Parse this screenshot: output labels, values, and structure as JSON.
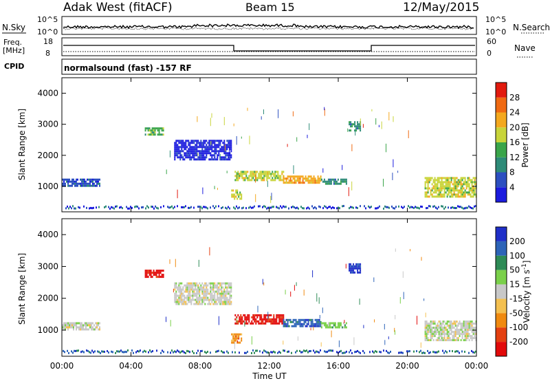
{
  "header": {
    "station": "Adak West (fitACF)",
    "beam": "Beam 15",
    "date": "12/May/2015"
  },
  "top_panels": {
    "nsky_label": "N.Sky",
    "nsearch_label": "N.Search",
    "nsky_ticks": [
      "10^5",
      "10^0"
    ],
    "nsearch_ticks": [
      "10^5",
      "10^0"
    ],
    "freq_label_1": "Freq.",
    "freq_label_2": "[MHz]",
    "freq_ticks": [
      "18",
      "8"
    ],
    "nave_label": "Nave",
    "nave_ticks": [
      "60",
      "0"
    ],
    "cpid_label": "CPID",
    "cpid_text": "normalsound (fast) -157 RF"
  },
  "chart_data": [
    {
      "type": "heatmap",
      "name": "power",
      "ylabel": "Slant Range [km]",
      "xlabel": "",
      "yticks": [
        "1000",
        "2000",
        "3000",
        "4000"
      ],
      "ylim": [
        180,
        4500
      ],
      "xlim": [
        0,
        24
      ],
      "colorbar_label": "Power [dB]",
      "colorbar_ticks": [
        "4",
        "8",
        "12",
        "16",
        "20",
        "24",
        "28"
      ],
      "colors": [
        "#1b1bde",
        "#2c4fc0",
        "#2e8b78",
        "#3aa54a",
        "#c8d43a",
        "#f4a81e",
        "#f06a12",
        "#e21a0e"
      ],
      "echo_regions": [
        {
          "t": [
            0.0,
            2.2
          ],
          "range": [
            1050,
            1250
          ],
          "level": 1
        },
        {
          "t": [
            4.8,
            5.9
          ],
          "range": [
            2650,
            2900
          ],
          "level": 3
        },
        {
          "t": [
            6.5,
            9.8
          ],
          "range": [
            1850,
            2500
          ],
          "level": 0
        },
        {
          "t": [
            9.8,
            10.4
          ],
          "range": [
            600,
            900
          ],
          "level": 4
        },
        {
          "t": [
            10.0,
            12.8
          ],
          "range": [
            1200,
            1500
          ],
          "level": 4
        },
        {
          "t": [
            12.8,
            15.0
          ],
          "range": [
            1100,
            1350
          ],
          "level": 5
        },
        {
          "t": [
            15.0,
            16.5
          ],
          "range": [
            1100,
            1250
          ],
          "level": 2
        },
        {
          "t": [
            16.6,
            17.3
          ],
          "range": [
            2800,
            3100
          ],
          "level": 2
        },
        {
          "t": [
            21.0,
            24.0
          ],
          "range": [
            700,
            1300
          ],
          "level": 4
        }
      ]
    },
    {
      "type": "heatmap",
      "name": "velocity",
      "ylabel": "Slant Range [km]",
      "xlabel": "Time UT",
      "xticks": [
        "00:00",
        "04:00",
        "08:00",
        "12:00",
        "16:00",
        "20:00",
        "00:00"
      ],
      "yticks": [
        "1000",
        "2000",
        "3000",
        "4000"
      ],
      "ylim": [
        180,
        4500
      ],
      "xlim": [
        0,
        24
      ],
      "colorbar_label": "Velocity [m s^-1]",
      "colorbar_ticks": [
        "200",
        "100",
        "50",
        "15",
        "-15",
        "-50",
        "-100",
        "-200"
      ],
      "colors": [
        "#1f2fc8",
        "#2d64b8",
        "#2e8b56",
        "#7ad04a",
        "#c8c8c8",
        "#f4c050",
        "#f08a10",
        "#e44010",
        "#e20a0a"
      ],
      "echo_regions": [
        {
          "t": [
            0.0,
            2.2
          ],
          "range": [
            1050,
            1250
          ],
          "level": 4
        },
        {
          "t": [
            4.8,
            5.9
          ],
          "range": [
            2650,
            2900
          ],
          "level": 8
        },
        {
          "t": [
            6.5,
            9.8
          ],
          "range": [
            1850,
            2500
          ],
          "level": 4
        },
        {
          "t": [
            9.8,
            10.4
          ],
          "range": [
            600,
            900
          ],
          "level": 6
        },
        {
          "t": [
            10.0,
            12.8
          ],
          "range": [
            1200,
            1500
          ],
          "level": 8
        },
        {
          "t": [
            12.8,
            15.0
          ],
          "range": [
            1100,
            1350
          ],
          "level": 1
        },
        {
          "t": [
            15.0,
            16.5
          ],
          "range": [
            1100,
            1250
          ],
          "level": 3
        },
        {
          "t": [
            16.6,
            17.3
          ],
          "range": [
            2800,
            3100
          ],
          "level": 0
        },
        {
          "t": [
            21.0,
            24.0
          ],
          "range": [
            700,
            1300
          ],
          "level": 4
        }
      ]
    }
  ]
}
